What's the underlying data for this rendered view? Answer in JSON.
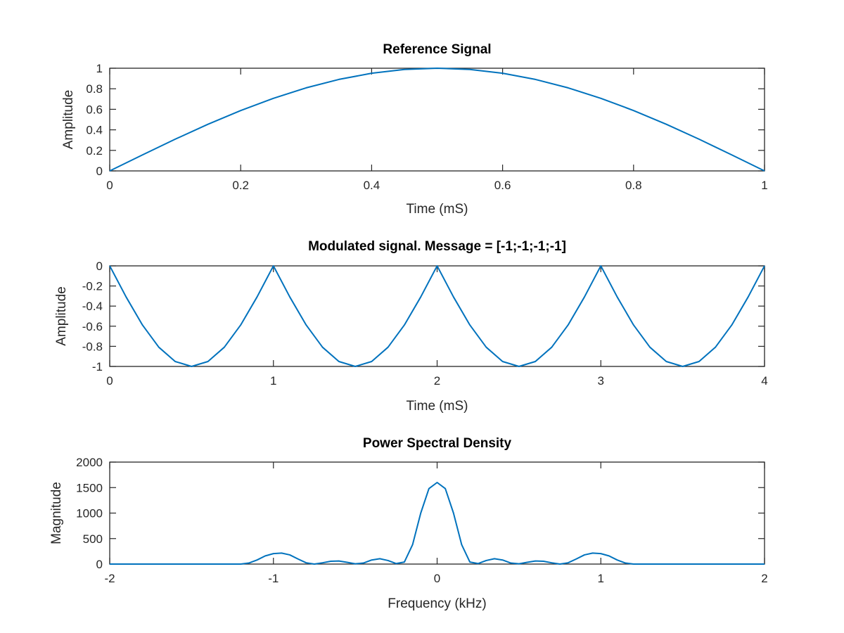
{
  "chart_data": [
    {
      "type": "line",
      "title": "Reference Signal",
      "xlabel": "Time (mS)",
      "ylabel": "Amplitude",
      "xlim": [
        0,
        1
      ],
      "ylim": [
        0,
        1
      ],
      "xticks": [
        "0",
        "0.2",
        "0.4",
        "0.6",
        "0.8",
        "1"
      ],
      "yticks": [
        "0",
        "0.2",
        "0.4",
        "0.6",
        "0.8",
        "1"
      ],
      "grid": false,
      "series": [
        {
          "color": "#0072bd",
          "x": [
            0,
            0.05,
            0.1,
            0.15,
            0.2,
            0.25,
            0.3,
            0.35,
            0.4,
            0.45,
            0.5,
            0.55,
            0.6,
            0.65,
            0.7,
            0.75,
            0.8,
            0.85,
            0.9,
            0.95,
            1
          ],
          "y": [
            0,
            0.156,
            0.309,
            0.454,
            0.588,
            0.707,
            0.809,
            0.891,
            0.951,
            0.988,
            1,
            0.988,
            0.951,
            0.891,
            0.809,
            0.707,
            0.588,
            0.454,
            0.309,
            0.156,
            0
          ]
        }
      ]
    },
    {
      "type": "line",
      "title": "Modulated signal. Message = [-1;-1;-1;-1]",
      "xlabel": "Time (mS)",
      "ylabel": "Amplitude",
      "xlim": [
        0,
        4
      ],
      "ylim": [
        -1,
        0
      ],
      "xticks": [
        "0",
        "1",
        "2",
        "3",
        "4"
      ],
      "yticks": [
        "-1",
        "-0.8",
        "-0.6",
        "-0.4",
        "-0.2",
        "0"
      ],
      "grid": false,
      "series": [
        {
          "color": "#0072bd",
          "x": [
            0,
            0.1,
            0.2,
            0.3,
            0.4,
            0.5,
            0.6,
            0.7,
            0.8,
            0.9,
            1,
            1.1,
            1.2,
            1.3,
            1.4,
            1.5,
            1.6,
            1.7,
            1.8,
            1.9,
            2,
            2.1,
            2.2,
            2.3,
            2.4,
            2.5,
            2.6,
            2.7,
            2.8,
            2.9,
            3,
            3.1,
            3.2,
            3.3,
            3.4,
            3.5,
            3.6,
            3.7,
            3.8,
            3.9,
            4
          ],
          "y": [
            0,
            -0.309,
            -0.588,
            -0.809,
            -0.951,
            -1,
            -0.951,
            -0.809,
            -0.588,
            -0.309,
            0,
            -0.309,
            -0.588,
            -0.809,
            -0.951,
            -1,
            -0.951,
            -0.809,
            -0.588,
            -0.309,
            0,
            -0.309,
            -0.588,
            -0.809,
            -0.951,
            -1,
            -0.951,
            -0.809,
            -0.588,
            -0.309,
            0,
            -0.309,
            -0.588,
            -0.809,
            -0.951,
            -1,
            -0.951,
            -0.809,
            -0.588,
            -0.309,
            0
          ]
        }
      ]
    },
    {
      "type": "line",
      "title": "Power Spectral Density",
      "xlabel": "Frequency (kHz)",
      "ylabel": "Magnitude",
      "xlim": [
        -2,
        2
      ],
      "ylim": [
        0,
        2000
      ],
      "xticks": [
        "-2",
        "-1",
        "0",
        "1",
        "2"
      ],
      "yticks": [
        "0",
        "500",
        "1000",
        "1500",
        "2000"
      ],
      "grid": false,
      "series": [
        {
          "color": "#0072bd",
          "x": [
            -2,
            -1.2,
            -1.15,
            -1.1,
            -1.05,
            -1.0,
            -0.95,
            -0.9,
            -0.85,
            -0.8,
            -0.75,
            -0.7,
            -0.65,
            -0.6,
            -0.55,
            -0.5,
            -0.45,
            -0.4,
            -0.35,
            -0.3,
            -0.25,
            -0.2,
            -0.15,
            -0.1,
            -0.05,
            0,
            0.05,
            0.1,
            0.15,
            0.2,
            0.25,
            0.3,
            0.35,
            0.4,
            0.45,
            0.5,
            0.55,
            0.6,
            0.65,
            0.7,
            0.75,
            0.8,
            0.85,
            0.9,
            0.95,
            1.0,
            1.05,
            1.1,
            1.15,
            1.2,
            2
          ],
          "y": [
            0,
            0,
            20,
            80,
            160,
            205,
            215,
            180,
            100,
            25,
            0,
            25,
            55,
            60,
            35,
            5,
            20,
            80,
            105,
            70,
            10,
            40,
            380,
            1000,
            1480,
            1600,
            1480,
            1000,
            380,
            40,
            10,
            70,
            105,
            80,
            20,
            5,
            35,
            60,
            55,
            25,
            0,
            25,
            100,
            180,
            215,
            205,
            160,
            80,
            20,
            0,
            0
          ]
        }
      ]
    }
  ]
}
